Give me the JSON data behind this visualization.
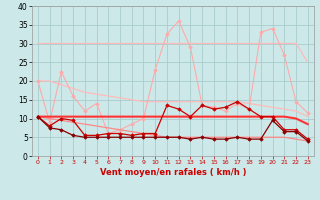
{
  "x": [
    0,
    1,
    2,
    3,
    4,
    5,
    6,
    7,
    8,
    9,
    10,
    11,
    12,
    13,
    14,
    15,
    16,
    17,
    18,
    19,
    20,
    21,
    22,
    23
  ],
  "background_color": "#cce8e8",
  "grid_color": "#aacccc",
  "xlabel": "Vent moyen/en rafales ( km/h )",
  "ylim": [
    0,
    40
  ],
  "yticks": [
    0,
    5,
    10,
    15,
    20,
    25,
    30,
    35,
    40
  ],
  "series": {
    "line_upper1": [
      30.0,
      30.0,
      30.0,
      30.0,
      30.0,
      30.0,
      30.0,
      30.0,
      30.0,
      30.0,
      30.0,
      30.0,
      30.0,
      30.0,
      30.0,
      30.0,
      30.0,
      30.0,
      30.0,
      30.0,
      30.0,
      30.0,
      30.0,
      25.0
    ],
    "line_upper2": [
      20.0,
      20.0,
      19.0,
      18.0,
      17.0,
      16.5,
      16.0,
      15.5,
      15.0,
      14.5,
      14.5,
      14.5,
      14.5,
      14.5,
      14.5,
      14.5,
      14.5,
      14.5,
      14.0,
      13.5,
      13.0,
      12.5,
      12.0,
      10.5
    ],
    "line_mid_smooth1": [
      10.5,
      10.5,
      10.5,
      10.5,
      10.5,
      10.5,
      10.5,
      10.5,
      10.5,
      10.5,
      10.5,
      10.5,
      10.5,
      10.5,
      10.5,
      10.5,
      10.5,
      10.5,
      10.5,
      10.5,
      10.5,
      10.5,
      10.0,
      8.5
    ],
    "line_mid_smooth2": [
      10.5,
      10.0,
      9.5,
      9.0,
      8.5,
      8.0,
      7.5,
      7.0,
      6.5,
      6.0,
      5.5,
      5.0,
      5.0,
      5.0,
      5.0,
      5.0,
      5.0,
      5.0,
      5.0,
      5.0,
      5.0,
      5.0,
      4.5,
      4.0
    ],
    "jagged_upper": [
      20.0,
      9.0,
      22.5,
      16.0,
      12.0,
      14.0,
      6.0,
      7.0,
      8.5,
      10.0,
      23.0,
      32.5,
      36.0,
      29.0,
      13.5,
      13.0,
      12.0,
      14.0,
      12.5,
      33.0,
      34.0,
      27.0,
      14.5,
      11.5
    ],
    "jagged_mid": [
      10.5,
      8.0,
      10.0,
      9.5,
      5.5,
      5.5,
      6.0,
      6.0,
      5.5,
      6.0,
      6.0,
      13.5,
      12.5,
      10.5,
      13.5,
      12.5,
      13.0,
      14.5,
      12.5,
      10.5,
      10.5,
      7.0,
      7.0,
      4.5
    ],
    "jagged_low": [
      10.5,
      7.5,
      7.0,
      5.5,
      5.0,
      5.0,
      5.0,
      5.0,
      5.0,
      5.0,
      5.0,
      5.0,
      5.0,
      4.5,
      5.0,
      4.5,
      4.5,
      5.0,
      4.5,
      4.5,
      9.5,
      6.5,
      6.5,
      4.0
    ]
  },
  "colors": {
    "line_upper1": "#ffbbbb",
    "line_upper2": "#ffbbbb",
    "jagged_upper": "#ffaaaa",
    "line_mid_smooth1": "#ff3333",
    "line_mid_smooth2": "#ff8888",
    "jagged_mid": "#cc0000",
    "jagged_low": "#880000"
  }
}
